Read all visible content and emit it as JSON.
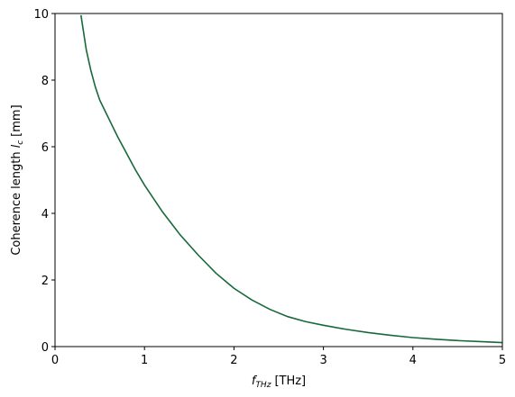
{
  "chart_data": {
    "type": "line",
    "xlabel": {
      "symbol": "f",
      "sub": "THz",
      "unit": "[THz]"
    },
    "ylabel": {
      "text": "Coherence length",
      "symbol": "l",
      "sub": "c",
      "unit": "[mm]"
    },
    "x": [
      0.29,
      0.35,
      0.4,
      0.45,
      0.5,
      0.6,
      0.7,
      0.8,
      0.9,
      1.0,
      1.2,
      1.4,
      1.6,
      1.8,
      2.0,
      2.2,
      2.4,
      2.6,
      2.8,
      3.0,
      3.25,
      3.5,
      3.75,
      4.0,
      4.25,
      4.5,
      4.75,
      5.0
    ],
    "series": [
      {
        "color": "#17693a",
        "values": [
          9.95,
          8.9,
          8.3,
          7.8,
          7.4,
          6.85,
          6.3,
          5.8,
          5.3,
          4.85,
          4.05,
          3.35,
          2.75,
          2.2,
          1.75,
          1.4,
          1.12,
          0.9,
          0.75,
          0.64,
          0.52,
          0.42,
          0.34,
          0.27,
          0.22,
          0.18,
          0.15,
          0.12
        ]
      }
    ],
    "xlim": [
      0,
      5
    ],
    "ylim": [
      0,
      10
    ],
    "xticks": [
      0,
      1,
      2,
      3,
      4,
      5
    ],
    "yticks": [
      0,
      2,
      4,
      6,
      8,
      10
    ],
    "grid": false
  }
}
